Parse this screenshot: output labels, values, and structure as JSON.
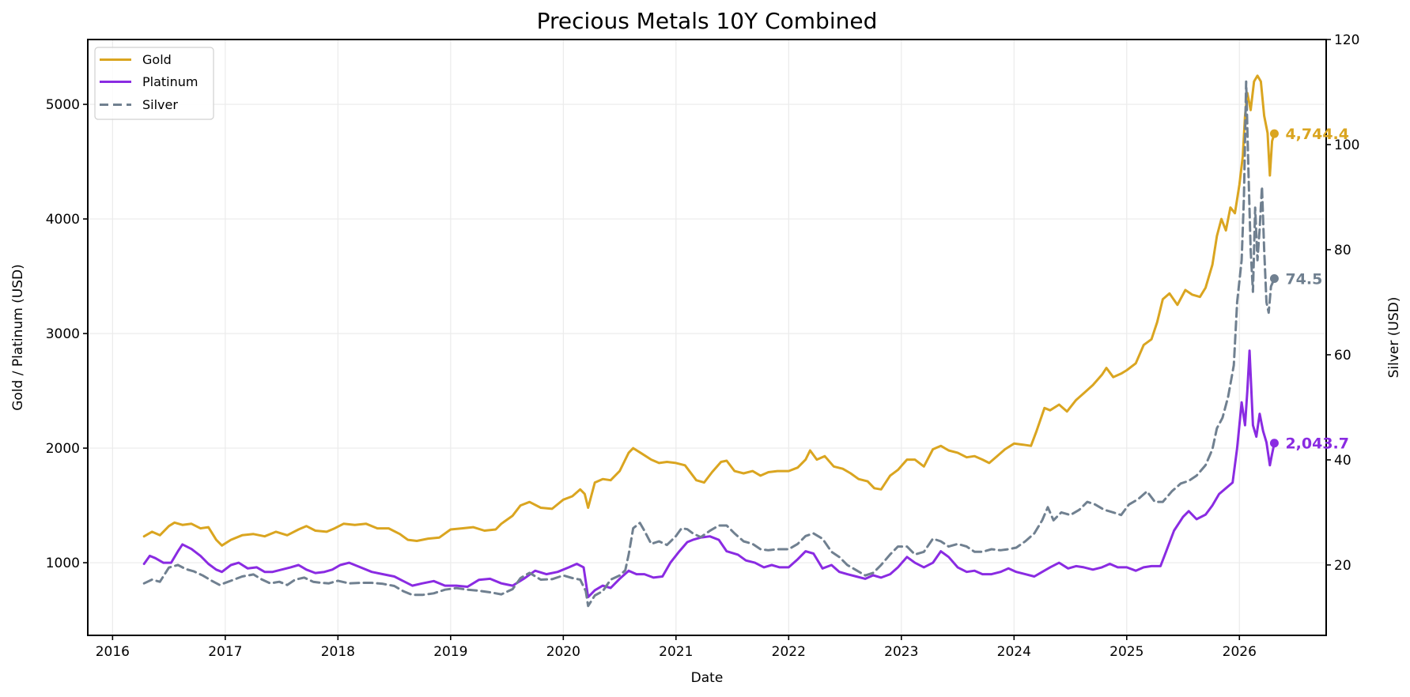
{
  "chart_data": {
    "type": "line",
    "title": "Precious Metals 10Y Combined",
    "xlabel": "Date",
    "ylabel_left": "Gold / Platinum (USD)",
    "ylabel_right": "Silver (USD)",
    "grid": true,
    "legend_position": "top-left",
    "xlim": [
      2015.78,
      2026.77
    ],
    "ylim_left": [
      366,
      5566
    ],
    "ylim_right": [
      6.6,
      120.0
    ],
    "x_ticks": [
      2016,
      2017,
      2018,
      2019,
      2020,
      2021,
      2022,
      2023,
      2024,
      2025,
      2026
    ],
    "x_tick_labels": [
      "2016",
      "2017",
      "2018",
      "2019",
      "2020",
      "2021",
      "2022",
      "2023",
      "2024",
      "2025",
      "2026"
    ],
    "y_ticks_left": [
      1000,
      2000,
      3000,
      4000,
      5000
    ],
    "y_tick_labels_left": [
      "1000",
      "2000",
      "3000",
      "4000",
      "5000"
    ],
    "y_ticks_right": [
      20,
      40,
      60,
      80,
      100,
      120
    ],
    "y_tick_labels_right": [
      "20",
      "40",
      "60",
      "80",
      "100",
      "120"
    ],
    "series": [
      {
        "name": "Gold",
        "axis": "left",
        "color": "#DAA520",
        "style": "solid",
        "end_label": "4,744.4",
        "end_value": 4744.4,
        "x": [
          2016.28,
          2016.35,
          2016.42,
          2016.5,
          2016.55,
          2016.62,
          2016.7,
          2016.78,
          2016.85,
          2016.92,
          2016.97,
          2017.05,
          2017.15,
          2017.25,
          2017.35,
          2017.45,
          2017.55,
          2017.65,
          2017.72,
          2017.8,
          2017.9,
          2017.97,
          2018.05,
          2018.15,
          2018.25,
          2018.35,
          2018.45,
          2018.55,
          2018.62,
          2018.7,
          2018.8,
          2018.9,
          2019.0,
          2019.1,
          2019.2,
          2019.3,
          2019.4,
          2019.45,
          2019.55,
          2019.62,
          2019.7,
          2019.8,
          2019.9,
          2020.0,
          2020.08,
          2020.15,
          2020.19,
          2020.22,
          2020.28,
          2020.35,
          2020.42,
          2020.5,
          2020.58,
          2020.62,
          2020.7,
          2020.78,
          2020.85,
          2020.92,
          2021.0,
          2021.08,
          2021.18,
          2021.25,
          2021.32,
          2021.4,
          2021.45,
          2021.52,
          2021.6,
          2021.68,
          2021.75,
          2021.82,
          2021.9,
          2022.0,
          2022.08,
          2022.15,
          2022.19,
          2022.25,
          2022.32,
          2022.4,
          2022.48,
          2022.55,
          2022.62,
          2022.7,
          2022.76,
          2022.82,
          2022.9,
          2022.97,
          2023.05,
          2023.12,
          2023.2,
          2023.28,
          2023.35,
          2023.42,
          2023.5,
          2023.58,
          2023.65,
          2023.72,
          2023.78,
          2023.85,
          2023.92,
          2024.0,
          2024.08,
          2024.15,
          2024.2,
          2024.27,
          2024.32,
          2024.4,
          2024.47,
          2024.55,
          2024.62,
          2024.7,
          2024.78,
          2024.82,
          2024.88,
          2024.95,
          2025.0,
          2025.08,
          2025.15,
          2025.22,
          2025.27,
          2025.32,
          2025.38,
          2025.45,
          2025.52,
          2025.58,
          2025.65,
          2025.7,
          2025.76,
          2025.8,
          2025.84,
          2025.88,
          2025.92,
          2025.96,
          2026.0,
          2026.03,
          2026.05,
          2026.07,
          2026.1,
          2026.13,
          2026.16,
          2026.19,
          2026.22,
          2026.25,
          2026.27,
          2026.29,
          2026.31
        ],
        "values": [
          1230,
          1270,
          1240,
          1320,
          1350,
          1330,
          1340,
          1300,
          1310,
          1200,
          1150,
          1200,
          1240,
          1250,
          1230,
          1270,
          1240,
          1290,
          1320,
          1280,
          1270,
          1300,
          1340,
          1330,
          1340,
          1300,
          1300,
          1250,
          1200,
          1190,
          1210,
          1220,
          1290,
          1300,
          1310,
          1280,
          1290,
          1340,
          1410,
          1500,
          1530,
          1480,
          1470,
          1550,
          1580,
          1640,
          1600,
          1480,
          1700,
          1730,
          1720,
          1800,
          1960,
          2000,
          1950,
          1900,
          1870,
          1880,
          1870,
          1850,
          1720,
          1700,
          1790,
          1880,
          1890,
          1800,
          1780,
          1800,
          1760,
          1790,
          1800,
          1800,
          1830,
          1900,
          1980,
          1900,
          1930,
          1840,
          1820,
          1780,
          1730,
          1710,
          1650,
          1640,
          1760,
          1810,
          1900,
          1900,
          1840,
          1990,
          2020,
          1980,
          1960,
          1920,
          1930,
          1900,
          1870,
          1930,
          1990,
          2040,
          2030,
          2020,
          2150,
          2350,
          2330,
          2380,
          2320,
          2420,
          2480,
          2550,
          2640,
          2700,
          2620,
          2650,
          2680,
          2740,
          2900,
          2950,
          3100,
          3300,
          3350,
          3250,
          3380,
          3340,
          3320,
          3400,
          3600,
          3850,
          4000,
          3900,
          4100,
          4050,
          4300,
          4550,
          4900,
          5100,
          4950,
          5200,
          5250,
          5200,
          4900,
          4750,
          4380,
          4680,
          4744.4
        ]
      },
      {
        "name": "Platinum",
        "axis": "left",
        "color": "#8A2BE2",
        "style": "solid",
        "end_label": "2,043.7",
        "end_value": 2043.7,
        "x": [
          2016.28,
          2016.33,
          2016.38,
          2016.45,
          2016.52,
          2016.58,
          2016.62,
          2016.7,
          2016.78,
          2016.85,
          2016.92,
          2016.97,
          2017.05,
          2017.12,
          2017.2,
          2017.28,
          2017.35,
          2017.42,
          2017.5,
          2017.58,
          2017.65,
          2017.72,
          2017.8,
          2017.88,
          2017.95,
          2018.02,
          2018.1,
          2018.2,
          2018.3,
          2018.4,
          2018.5,
          2018.58,
          2018.66,
          2018.75,
          2018.85,
          2018.95,
          2019.05,
          2019.15,
          2019.25,
          2019.35,
          2019.45,
          2019.55,
          2019.65,
          2019.75,
          2019.85,
          2019.95,
          2020.05,
          2020.12,
          2020.18,
          2020.22,
          2020.28,
          2020.35,
          2020.42,
          2020.5,
          2020.58,
          2020.65,
          2020.72,
          2020.8,
          2020.88,
          2020.95,
          2021.03,
          2021.1,
          2021.15,
          2021.22,
          2021.3,
          2021.38,
          2021.45,
          2021.55,
          2021.62,
          2021.7,
          2021.78,
          2021.85,
          2021.92,
          2022.0,
          2022.08,
          2022.15,
          2022.22,
          2022.3,
          2022.38,
          2022.45,
          2022.52,
          2022.6,
          2022.68,
          2022.75,
          2022.82,
          2022.9,
          2022.97,
          2023.05,
          2023.12,
          2023.2,
          2023.28,
          2023.35,
          2023.42,
          2023.5,
          2023.58,
          2023.65,
          2023.72,
          2023.8,
          2023.88,
          2023.95,
          2024.02,
          2024.1,
          2024.18,
          2024.25,
          2024.32,
          2024.4,
          2024.48,
          2024.55,
          2024.62,
          2024.7,
          2024.78,
          2024.85,
          2024.92,
          2025.0,
          2025.08,
          2025.15,
          2025.22,
          2025.3,
          2025.35,
          2025.42,
          2025.5,
          2025.55,
          2025.62,
          2025.7,
          2025.76,
          2025.82,
          2025.88,
          2025.94,
          2025.98,
          2026.02,
          2026.05,
          2026.07,
          2026.09,
          2026.12,
          2026.15,
          2026.18,
          2026.21,
          2026.24,
          2026.27,
          2026.29,
          2026.31
        ],
        "values": [
          990,
          1060,
          1040,
          1000,
          1000,
          1100,
          1160,
          1120,
          1060,
          990,
          940,
          920,
          980,
          1000,
          950,
          960,
          920,
          920,
          940,
          960,
          980,
          940,
          910,
          920,
          940,
          980,
          1000,
          960,
          920,
          900,
          880,
          840,
          800,
          820,
          840,
          800,
          800,
          790,
          850,
          860,
          820,
          800,
          860,
          930,
          900,
          920,
          960,
          990,
          960,
          700,
          760,
          800,
          780,
          860,
          930,
          900,
          900,
          870,
          880,
          1000,
          1100,
          1180,
          1200,
          1220,
          1230,
          1200,
          1100,
          1070,
          1020,
          1000,
          960,
          980,
          960,
          960,
          1030,
          1100,
          1080,
          950,
          980,
          920,
          900,
          880,
          860,
          890,
          870,
          900,
          960,
          1050,
          1000,
          960,
          1000,
          1100,
          1050,
          960,
          920,
          930,
          900,
          900,
          920,
          950,
          920,
          900,
          880,
          920,
          960,
          1000,
          950,
          970,
          960,
          940,
          960,
          990,
          960,
          960,
          930,
          960,
          970,
          970,
          1100,
          1280,
          1400,
          1450,
          1380,
          1420,
          1500,
          1600,
          1650,
          1700,
          2000,
          2400,
          2200,
          2500,
          2850,
          2200,
          2100,
          2300,
          2150,
          2050,
          1850,
          1950,
          2043.7
        ]
      },
      {
        "name": "Silver",
        "axis": "right",
        "color": "#708090",
        "style": "dashed",
        "end_label": "74.5",
        "end_value": 74.5,
        "x": [
          2016.28,
          2016.35,
          2016.42,
          2016.5,
          2016.58,
          2016.65,
          2016.72,
          2016.8,
          2016.88,
          2016.95,
          2017.05,
          2017.15,
          2017.25,
          2017.32,
          2017.4,
          2017.48,
          2017.55,
          2017.62,
          2017.7,
          2017.78,
          2017.85,
          2017.92,
          2018.0,
          2018.1,
          2018.2,
          2018.3,
          2018.4,
          2018.5,
          2018.58,
          2018.66,
          2018.75,
          2018.85,
          2018.95,
          2019.05,
          2019.15,
          2019.25,
          2019.35,
          2019.45,
          2019.55,
          2019.62,
          2019.7,
          2019.8,
          2019.9,
          2020.0,
          2020.08,
          2020.15,
          2020.2,
          2020.22,
          2020.28,
          2020.35,
          2020.42,
          2020.5,
          2020.55,
          2020.58,
          2020.62,
          2020.68,
          2020.72,
          2020.78,
          2020.85,
          2020.92,
          2021.0,
          2021.05,
          2021.1,
          2021.15,
          2021.22,
          2021.3,
          2021.38,
          2021.45,
          2021.52,
          2021.6,
          2021.68,
          2021.75,
          2021.82,
          2021.9,
          2022.0,
          2022.08,
          2022.15,
          2022.22,
          2022.3,
          2022.38,
          2022.45,
          2022.52,
          2022.6,
          2022.68,
          2022.75,
          2022.82,
          2022.9,
          2022.97,
          2023.05,
          2023.12,
          2023.2,
          2023.28,
          2023.35,
          2023.42,
          2023.5,
          2023.58,
          2023.65,
          2023.72,
          2023.8,
          2023.88,
          2023.95,
          2024.02,
          2024.1,
          2024.18,
          2024.25,
          2024.3,
          2024.35,
          2024.42,
          2024.5,
          2024.58,
          2024.65,
          2024.72,
          2024.8,
          2024.88,
          2024.95,
          2025.02,
          2025.1,
          2025.18,
          2025.25,
          2025.32,
          2025.4,
          2025.48,
          2025.55,
          2025.62,
          2025.7,
          2025.76,
          2025.8,
          2025.85,
          2025.9,
          2025.95,
          2025.98,
          2026.02,
          2026.04,
          2026.06,
          2026.08,
          2026.1,
          2026.12,
          2026.14,
          2026.16,
          2026.18,
          2026.2,
          2026.22,
          2026.24,
          2026.26,
          2026.28,
          2026.31
        ],
        "values": [
          16.5,
          17.2,
          16.8,
          19.5,
          20.0,
          19.2,
          18.8,
          18.0,
          17.0,
          16.2,
          17.0,
          17.8,
          18.2,
          17.3,
          16.5,
          16.8,
          16.2,
          17.2,
          17.6,
          16.8,
          16.6,
          16.5,
          17.0,
          16.5,
          16.6,
          16.6,
          16.4,
          16.0,
          15.0,
          14.3,
          14.3,
          14.6,
          15.3,
          15.6,
          15.3,
          15.1,
          14.8,
          14.4,
          15.4,
          17.5,
          18.5,
          17.2,
          17.3,
          18.0,
          17.5,
          17.2,
          15.0,
          12.2,
          14.2,
          15.0,
          17.2,
          18.0,
          19.0,
          22.0,
          27.0,
          28.0,
          26.5,
          24.0,
          24.5,
          23.8,
          25.5,
          27.0,
          26.8,
          26.0,
          25.3,
          26.5,
          27.5,
          27.5,
          26.0,
          24.5,
          24.0,
          23.0,
          22.8,
          23.0,
          23.0,
          24.0,
          25.5,
          26.0,
          25.0,
          22.5,
          21.5,
          20.0,
          19.0,
          18.0,
          18.5,
          20.0,
          22.0,
          23.5,
          23.5,
          22.0,
          22.5,
          25.0,
          24.5,
          23.5,
          24.0,
          23.5,
          22.5,
          22.5,
          23.0,
          22.8,
          23.0,
          23.3,
          24.5,
          26.0,
          28.5,
          31.0,
          28.5,
          30.0,
          29.5,
          30.5,
          32.0,
          31.5,
          30.5,
          30.0,
          29.5,
          31.5,
          32.5,
          34.0,
          32.0,
          32.0,
          34.0,
          35.5,
          36.0,
          37.0,
          39.0,
          42.0,
          46.0,
          48.0,
          52.0,
          58.0,
          70.0,
          78.0,
          90.0,
          112.0,
          95.0,
          80.0,
          72.0,
          88.0,
          78.0,
          84.0,
          92.0,
          80.0,
          70.0,
          68.0,
          73.0,
          74.5
        ]
      }
    ]
  }
}
